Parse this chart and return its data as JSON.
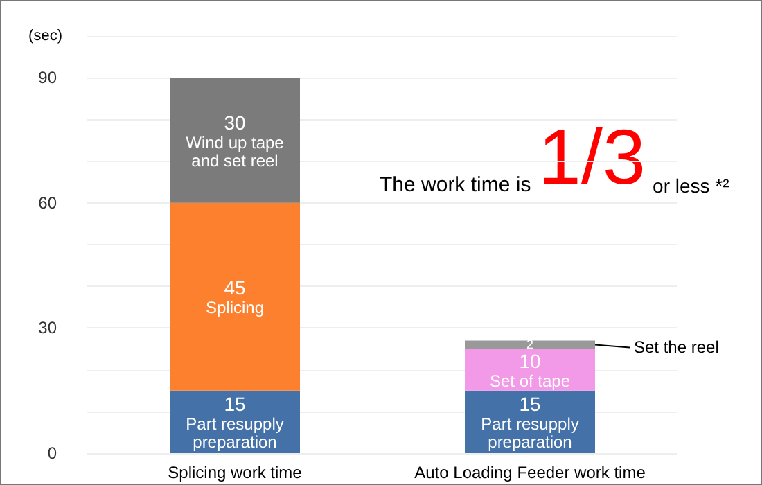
{
  "chart_data": {
    "type": "bar",
    "stacked": true,
    "ylabel": "(sec)",
    "categories": [
      "Splicing work time",
      "Auto Loading Feeder work time"
    ],
    "series": [
      {
        "name": "Part resupply preparation",
        "color": "#4472a8",
        "values": [
          15,
          15
        ]
      },
      {
        "name": "Splicing",
        "color": "#fd802e",
        "values": [
          45,
          null
        ]
      },
      {
        "name": "Set of tape",
        "color": "#f29ae8",
        "values": [
          null,
          10
        ]
      },
      {
        "name": "Wind up tape and set reel",
        "color": "#7b7b7b",
        "values": [
          30,
          null
        ]
      },
      {
        "name": "Set the reel",
        "color": "#999999",
        "values": [
          null,
          2
        ]
      }
    ],
    "ylim": [
      0,
      100
    ],
    "yticks": [
      0,
      {
        "value": 10,
        "label": null
      },
      {
        "value": 20,
        "label": null
      },
      30,
      {
        "value": 40,
        "label": null
      },
      {
        "value": 50,
        "label": null
      },
      60,
      {
        "value": 70,
        "label": null
      },
      {
        "value": 80,
        "label": null
      },
      90,
      {
        "value": 100,
        "label": null
      }
    ],
    "grid": "y",
    "legend": false,
    "data_labels": true,
    "annotations": [
      "The work time is",
      "1/3",
      "or less *²"
    ]
  }
}
